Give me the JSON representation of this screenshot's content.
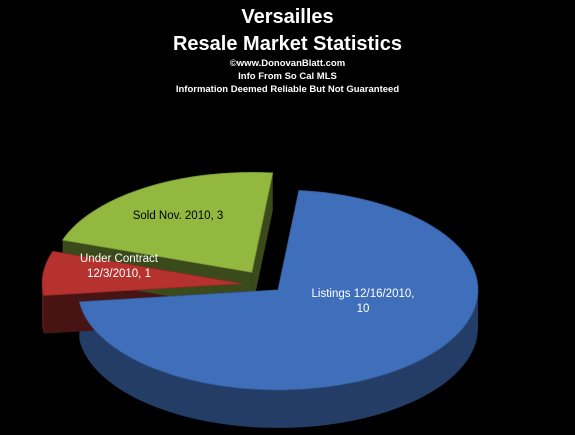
{
  "title_lines": [
    "Versailles",
    "Resale Market Statistics"
  ],
  "subtitle_lines": [
    "©www.DonovanBlatt.com",
    "Info  From So Cal MLS",
    "Information Deemed Reliable But Not Guaranteed"
  ],
  "chart_data": {
    "type": "pie",
    "title": "Versailles Resale Market Statistics",
    "style": "3d-exploded",
    "slices": [
      {
        "label": "Listings 12/16/2010",
        "value": 10,
        "color": "#3f6fba",
        "data_label": "Listings 12/16/2010, 10"
      },
      {
        "label": "Under Contract 12/3/2010",
        "value": 1,
        "color": "#b5322f",
        "data_label": "Under Contract 12/3/2010, 1"
      },
      {
        "label": "Sold Nov. 2010",
        "value": 3,
        "color": "#92b840",
        "data_label": "Sold Nov. 2010, 3"
      }
    ]
  }
}
